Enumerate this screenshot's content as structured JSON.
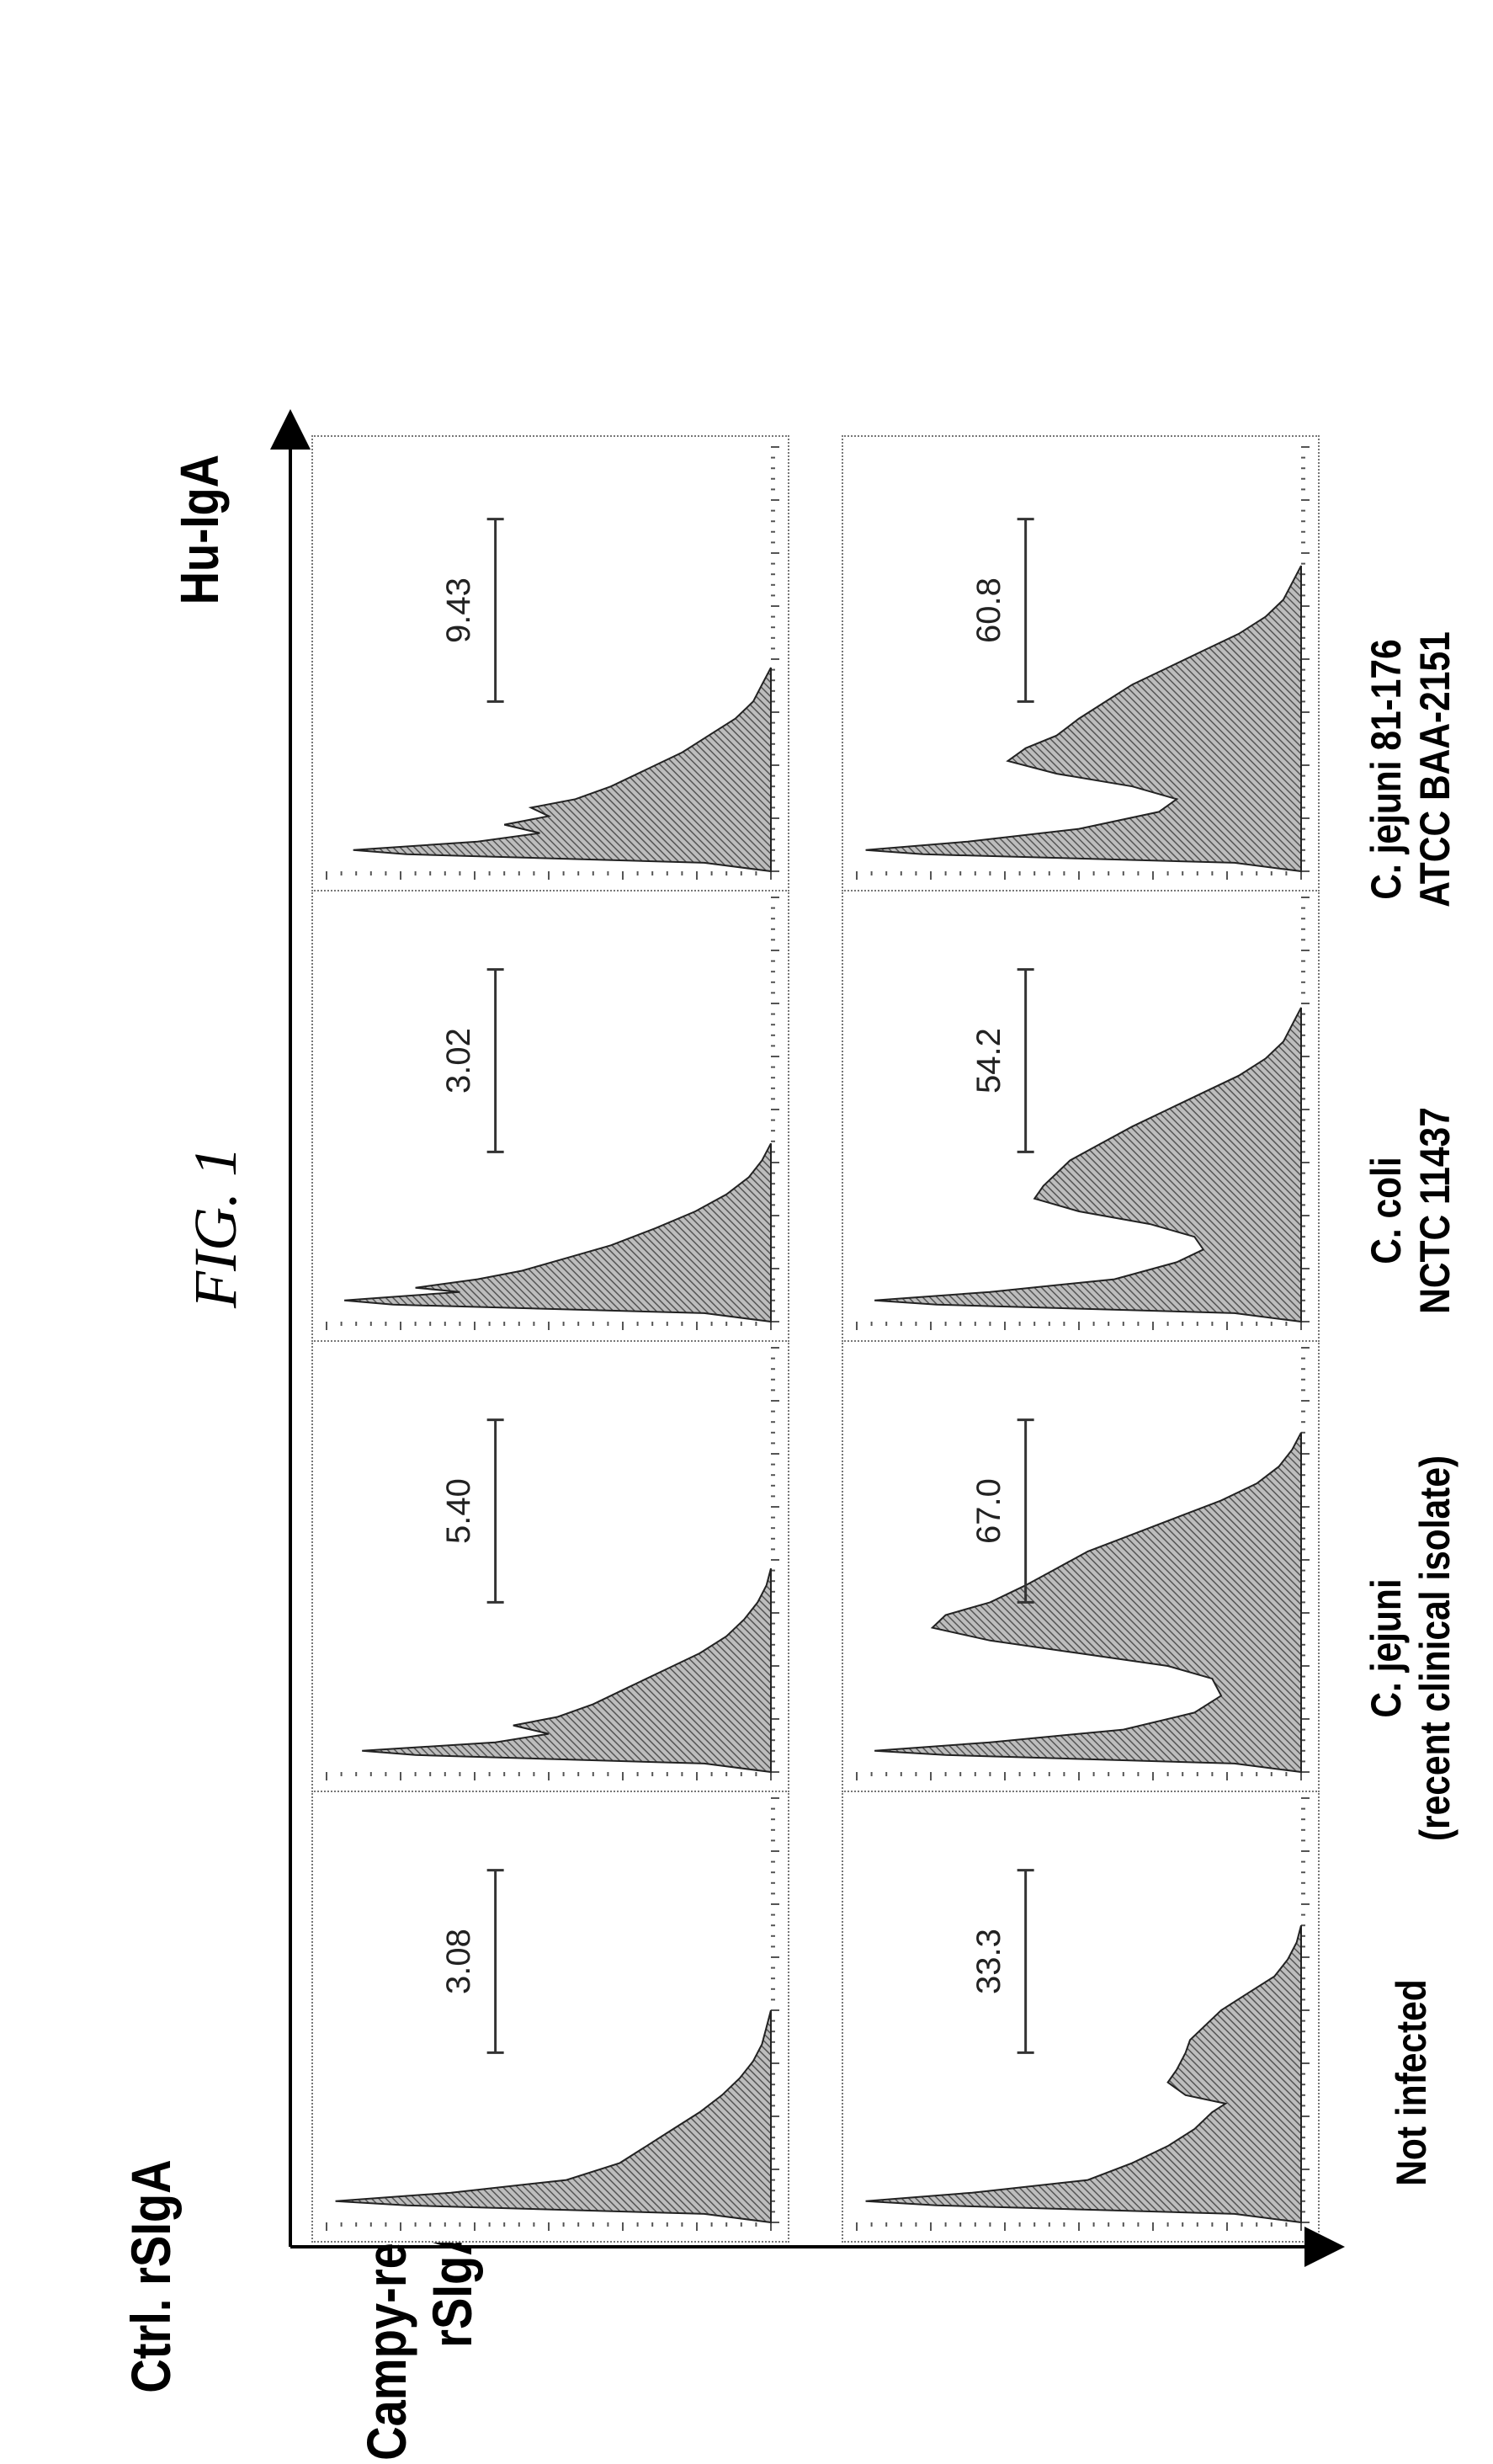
{
  "figure": {
    "caption": "FIG. 1",
    "x_axis_label": "Hu-IgA",
    "column_titles": [
      [
        "Not infected"
      ],
      [
        "C. jejuni",
        "(recent clinical isolate)"
      ],
      [
        "C. coli",
        "NCTC 11437"
      ],
      [
        "C. jejuni 81-176",
        "ATCC BAA-2151"
      ]
    ],
    "row_titles": [
      [
        "Campy-reactive",
        "rSIgA"
      ],
      [
        "Ctrl. rSIgA"
      ]
    ]
  },
  "chart_data": {
    "type": "histogram-grid",
    "xlabel": "Hu-IgA",
    "ylabel": "",
    "columns": [
      "Not infected",
      "C. jejuni (recent clinical isolate)",
      "C. coli NCTC 11437",
      "C. jejuni 81-176 ATCC BAA-2151"
    ],
    "rows": [
      "Campy-reactive rSIgA",
      "Ctrl. rSIgA"
    ],
    "gate_percent": [
      [
        33.3,
        67.0,
        54.2,
        60.8
      ],
      [
        3.08,
        5.4,
        3.02,
        9.43
      ]
    ],
    "gate_labels": [
      [
        "33.3",
        "67.0",
        "54.2",
        "60.8"
      ],
      [
        "3.08",
        "5.40",
        "3.02",
        "9.43"
      ]
    ],
    "gate_range": [
      0.4,
      0.83
    ],
    "histograms": [
      [
        [
          [
            0,
            0
          ],
          [
            0.02,
            0.15
          ],
          [
            0.04,
            0.82
          ],
          [
            0.05,
            0.98
          ],
          [
            0.07,
            0.74
          ],
          [
            0.1,
            0.48
          ],
          [
            0.14,
            0.38
          ],
          [
            0.18,
            0.3
          ],
          [
            0.22,
            0.24
          ],
          [
            0.26,
            0.2
          ],
          [
            0.28,
            0.17
          ],
          [
            0.3,
            0.26
          ],
          [
            0.33,
            0.3
          ],
          [
            0.36,
            0.28
          ],
          [
            0.4,
            0.26
          ],
          [
            0.43,
            0.25
          ],
          [
            0.46,
            0.22
          ],
          [
            0.5,
            0.18
          ],
          [
            0.54,
            0.12
          ],
          [
            0.58,
            0.06
          ],
          [
            0.62,
            0.03
          ],
          [
            0.66,
            0.01
          ],
          [
            0.7,
            0
          ]
        ],
        [
          [
            0,
            0
          ],
          [
            0.02,
            0.15
          ],
          [
            0.04,
            0.8
          ],
          [
            0.05,
            0.96
          ],
          [
            0.07,
            0.7
          ],
          [
            0.1,
            0.4
          ],
          [
            0.14,
            0.24
          ],
          [
            0.18,
            0.18
          ],
          [
            0.22,
            0.2
          ],
          [
            0.25,
            0.3
          ],
          [
            0.28,
            0.5
          ],
          [
            0.31,
            0.7
          ],
          [
            0.34,
            0.83
          ],
          [
            0.37,
            0.8
          ],
          [
            0.4,
            0.7
          ],
          [
            0.44,
            0.62
          ],
          [
            0.48,
            0.55
          ],
          [
            0.52,
            0.48
          ],
          [
            0.56,
            0.38
          ],
          [
            0.6,
            0.28
          ],
          [
            0.64,
            0.18
          ],
          [
            0.68,
            0.1
          ],
          [
            0.72,
            0.05
          ],
          [
            0.76,
            0.02
          ],
          [
            0.8,
            0
          ]
        ],
        [
          [
            0,
            0
          ],
          [
            0.02,
            0.15
          ],
          [
            0.04,
            0.82
          ],
          [
            0.05,
            0.96
          ],
          [
            0.07,
            0.7
          ],
          [
            0.1,
            0.42
          ],
          [
            0.14,
            0.28
          ],
          [
            0.17,
            0.22
          ],
          [
            0.2,
            0.24
          ],
          [
            0.23,
            0.34
          ],
          [
            0.26,
            0.5
          ],
          [
            0.29,
            0.6
          ],
          [
            0.32,
            0.58
          ],
          [
            0.35,
            0.55
          ],
          [
            0.38,
            0.52
          ],
          [
            0.42,
            0.45
          ],
          [
            0.46,
            0.38
          ],
          [
            0.5,
            0.3
          ],
          [
            0.54,
            0.22
          ],
          [
            0.58,
            0.14
          ],
          [
            0.62,
            0.08
          ],
          [
            0.66,
            0.04
          ],
          [
            0.7,
            0.02
          ],
          [
            0.74,
            0
          ]
        ],
        [
          [
            0,
            0
          ],
          [
            0.02,
            0.15
          ],
          [
            0.04,
            0.85
          ],
          [
            0.05,
            0.98
          ],
          [
            0.07,
            0.75
          ],
          [
            0.1,
            0.5
          ],
          [
            0.14,
            0.32
          ],
          [
            0.17,
            0.28
          ],
          [
            0.2,
            0.38
          ],
          [
            0.23,
            0.55
          ],
          [
            0.26,
            0.66
          ],
          [
            0.29,
            0.62
          ],
          [
            0.32,
            0.55
          ],
          [
            0.36,
            0.5
          ],
          [
            0.4,
            0.44
          ],
          [
            0.44,
            0.38
          ],
          [
            0.48,
            0.3
          ],
          [
            0.52,
            0.22
          ],
          [
            0.56,
            0.14
          ],
          [
            0.6,
            0.08
          ],
          [
            0.64,
            0.04
          ],
          [
            0.68,
            0.02
          ],
          [
            0.72,
            0
          ]
        ]
      ],
      [
        [
          [
            0,
            0
          ],
          [
            0.02,
            0.15
          ],
          [
            0.04,
            0.82
          ],
          [
            0.05,
            0.98
          ],
          [
            0.07,
            0.72
          ],
          [
            0.1,
            0.46
          ],
          [
            0.14,
            0.34
          ],
          [
            0.18,
            0.28
          ],
          [
            0.22,
            0.22
          ],
          [
            0.26,
            0.16
          ],
          [
            0.3,
            0.11
          ],
          [
            0.34,
            0.07
          ],
          [
            0.38,
            0.04
          ],
          [
            0.42,
            0.02
          ],
          [
            0.46,
            0.01
          ],
          [
            0.5,
            0
          ]
        ],
        [
          [
            0,
            0
          ],
          [
            0.02,
            0.15
          ],
          [
            0.04,
            0.8
          ],
          [
            0.05,
            0.92
          ],
          [
            0.07,
            0.62
          ],
          [
            0.09,
            0.5
          ],
          [
            0.11,
            0.58
          ],
          [
            0.13,
            0.48
          ],
          [
            0.16,
            0.4
          ],
          [
            0.2,
            0.32
          ],
          [
            0.24,
            0.24
          ],
          [
            0.28,
            0.16
          ],
          [
            0.32,
            0.1
          ],
          [
            0.36,
            0.06
          ],
          [
            0.4,
            0.03
          ],
          [
            0.44,
            0.01
          ],
          [
            0.48,
            0
          ]
        ],
        [
          [
            0,
            0
          ],
          [
            0.02,
            0.15
          ],
          [
            0.04,
            0.85
          ],
          [
            0.05,
            0.96
          ],
          [
            0.07,
            0.7
          ],
          [
            0.08,
            0.8
          ],
          [
            0.1,
            0.66
          ],
          [
            0.12,
            0.56
          ],
          [
            0.15,
            0.46
          ],
          [
            0.18,
            0.36
          ],
          [
            0.22,
            0.26
          ],
          [
            0.26,
            0.17
          ],
          [
            0.3,
            0.1
          ],
          [
            0.34,
            0.05
          ],
          [
            0.38,
            0.02
          ],
          [
            0.42,
            0
          ]
        ],
        [
          [
            0,
            0
          ],
          [
            0.02,
            0.15
          ],
          [
            0.04,
            0.82
          ],
          [
            0.05,
            0.94
          ],
          [
            0.07,
            0.66
          ],
          [
            0.09,
            0.52
          ],
          [
            0.11,
            0.6
          ],
          [
            0.13,
            0.5
          ],
          [
            0.15,
            0.54
          ],
          [
            0.17,
            0.44
          ],
          [
            0.2,
            0.36
          ],
          [
            0.24,
            0.28
          ],
          [
            0.28,
            0.2
          ],
          [
            0.32,
            0.14
          ],
          [
            0.36,
            0.08
          ],
          [
            0.4,
            0.04
          ],
          [
            0.44,
            0.02
          ],
          [
            0.48,
            0
          ]
        ]
      ]
    ]
  }
}
